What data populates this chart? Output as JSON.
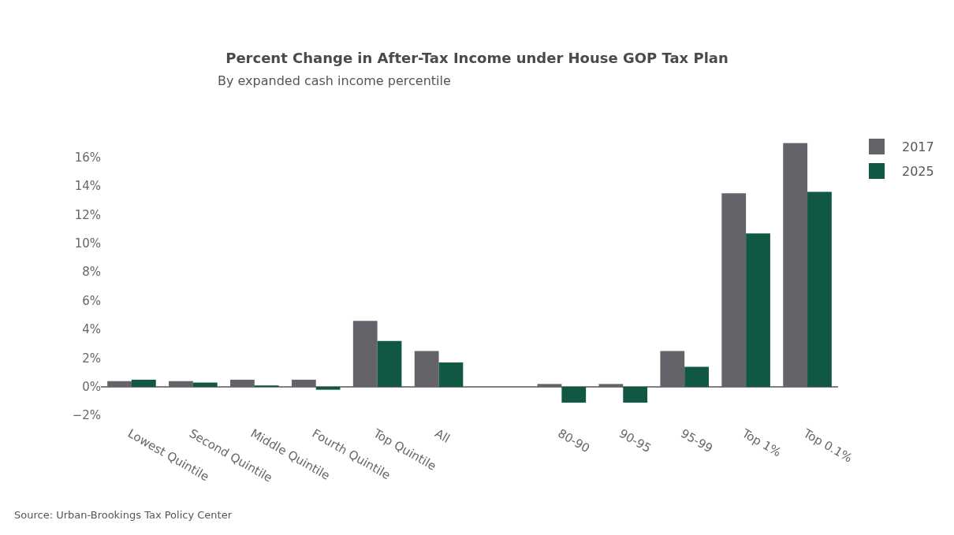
{
  "chart_data": {
    "type": "bar",
    "title": "Percent Change in After-Tax Income under House GOP Tax Plan",
    "subtitle": "By expanded cash income percentile",
    "categories": [
      "Lowest Quintile",
      "Second Quintile",
      "Middle Quintile",
      "Fourth Quintile",
      "Top Quintile",
      "All",
      null,
      "80-90",
      "90-95",
      "95-99",
      "Top 1%",
      "Top 0.1%"
    ],
    "series": [
      {
        "name": "2017",
        "color": "#636369",
        "values": [
          0.4,
          0.4,
          0.5,
          0.5,
          4.6,
          2.5,
          null,
          0.2,
          0.2,
          2.5,
          13.5,
          17.0
        ]
      },
      {
        "name": "2025",
        "color": "#115844",
        "values": [
          0.5,
          0.3,
          0.1,
          -0.2,
          3.2,
          1.7,
          null,
          -1.1,
          -1.1,
          1.4,
          10.7,
          13.6
        ]
      }
    ],
    "ylim": [
      -2,
      17
    ],
    "yticks": [
      {
        "value": -2,
        "label": "−2%"
      },
      {
        "value": 0,
        "label": "0%"
      },
      {
        "value": 2,
        "label": "2%"
      },
      {
        "value": 4,
        "label": "4%"
      },
      {
        "value": 6,
        "label": "6%"
      },
      {
        "value": 8,
        "label": "8%"
      },
      {
        "value": 10,
        "label": "10%"
      },
      {
        "value": 12,
        "label": "12%"
      },
      {
        "value": 14,
        "label": "14%"
      },
      {
        "value": 16,
        "label": "16%"
      }
    ],
    "legend": "top right",
    "annotations": [
      "Source: Urban-Brookings Tax Policy Center"
    ]
  }
}
